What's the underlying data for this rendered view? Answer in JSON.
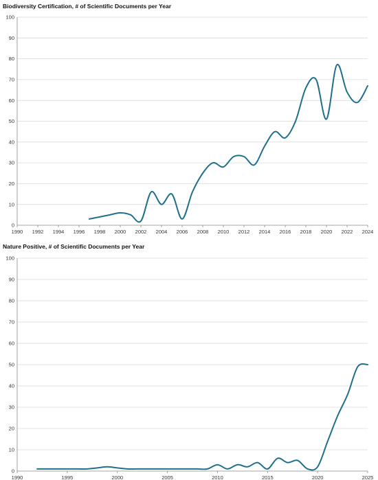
{
  "chart_data": [
    {
      "type": "line",
      "title": "Biodiversity Certification, # of Scientific Documents per Year",
      "xlabel": "",
      "ylabel": "",
      "xlim": [
        1990,
        2024
      ],
      "ylim": [
        0,
        100
      ],
      "x_ticks": [
        "1990",
        "1992",
        "1994",
        "1996",
        "1998",
        "2000",
        "2002",
        "2004",
        "2006",
        "2008",
        "2010",
        "2012",
        "2014",
        "2016",
        "2018",
        "2020",
        "2022",
        "2024"
      ],
      "y_ticks": [
        "0",
        "10",
        "20",
        "30",
        "40",
        "50",
        "60",
        "70",
        "80",
        "90",
        "100"
      ],
      "grid": true,
      "legend": "none",
      "line_color": "#1f6f8b",
      "series": [
        {
          "x": [
            1997,
            1998,
            1999,
            2000,
            2001,
            2002,
            2003,
            2004,
            2005,
            2006,
            2007,
            2008,
            2009,
            2010,
            2011,
            2012,
            2013,
            2014,
            2015,
            2016,
            2017,
            2018,
            2019,
            2020,
            2021,
            2022,
            2023,
            2024
          ],
          "values": [
            3,
            4,
            5,
            6,
            5,
            2,
            16,
            10,
            15,
            3,
            16,
            25,
            30,
            28,
            33,
            33,
            29,
            38,
            45,
            42,
            50,
            66,
            70,
            51,
            77,
            64,
            59,
            67
          ]
        }
      ]
    },
    {
      "type": "line",
      "title": "Nature Positive, # of Scientific Documents per Year",
      "xlabel": "",
      "ylabel": "",
      "xlim": [
        1990,
        2025
      ],
      "ylim": [
        0,
        100
      ],
      "x_ticks": [
        "1990",
        "1995",
        "2000",
        "2005",
        "2010",
        "2015",
        "2020",
        "2025"
      ],
      "y_ticks": [
        "0",
        "10",
        "20",
        "30",
        "40",
        "50",
        "60",
        "70",
        "80",
        "90",
        "100"
      ],
      "grid": true,
      "legend": "none",
      "line_color": "#1f6f8b",
      "series": [
        {
          "x": [
            1992,
            1993,
            1994,
            1995,
            1996,
            1997,
            1998,
            1999,
            2000,
            2001,
            2002,
            2003,
            2004,
            2005,
            2006,
            2007,
            2008,
            2009,
            2010,
            2011,
            2012,
            2013,
            2014,
            2015,
            2016,
            2017,
            2018,
            2019,
            2020,
            2021,
            2022,
            2023,
            2024,
            2025
          ],
          "values": [
            1,
            1,
            1,
            1,
            1,
            1,
            1.5,
            2,
            1.5,
            1,
            1,
            1,
            1,
            1,
            1,
            1,
            1,
            1,
            3,
            1,
            3,
            2,
            4,
            1,
            6,
            4,
            5,
            1,
            2,
            14,
            26,
            36,
            49,
            50
          ]
        }
      ]
    }
  ]
}
